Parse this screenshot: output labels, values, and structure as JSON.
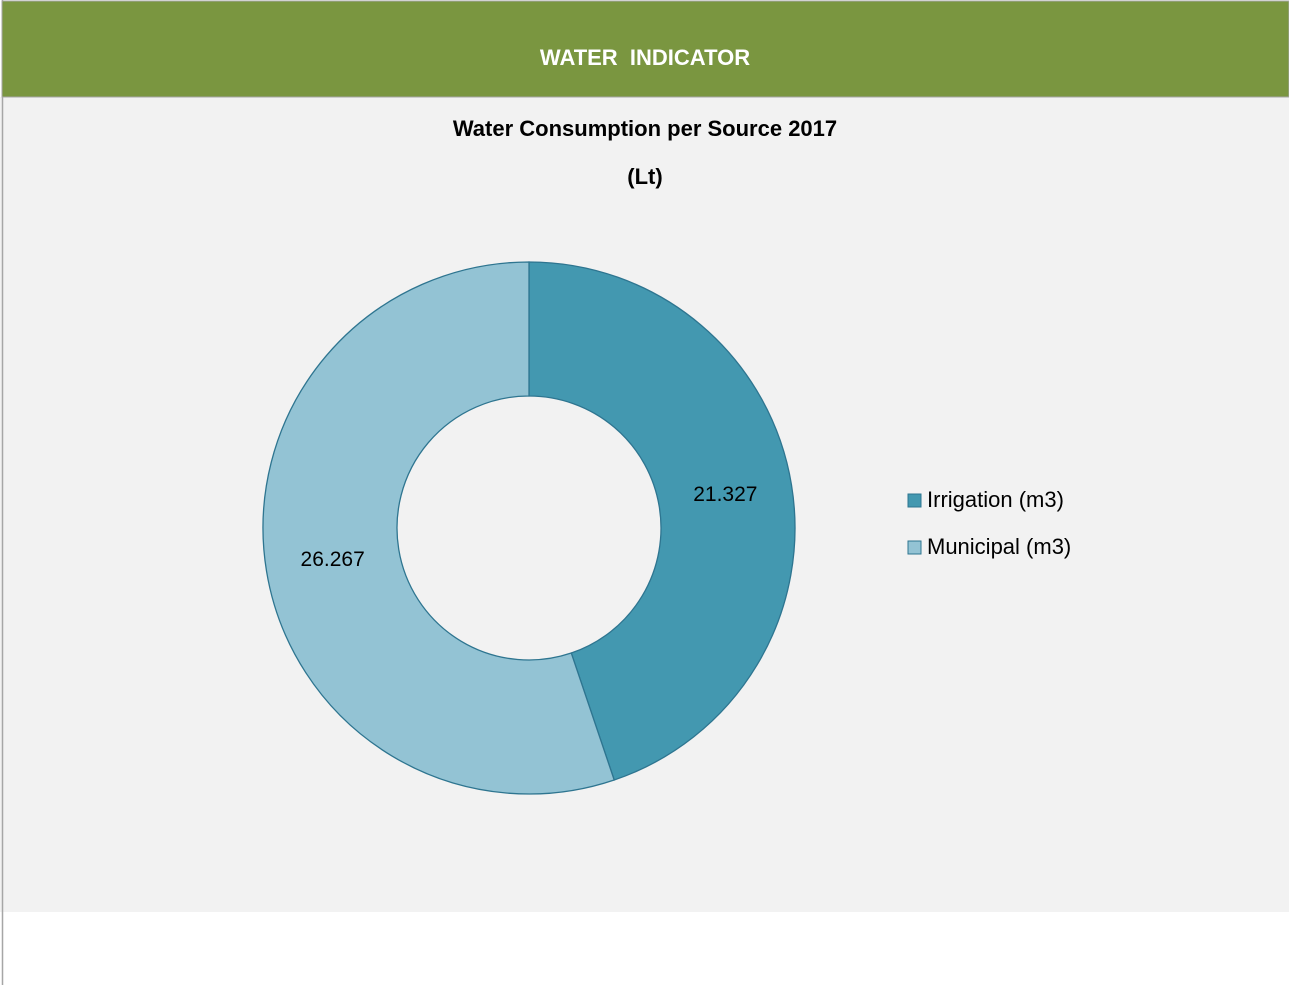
{
  "header": {
    "title": "WATER  INDICATOR"
  },
  "chart_data": {
    "type": "donut",
    "title": "Water Consumption per Source 2017",
    "subtitle": "(Lt)",
    "categories": [
      "Irrigation (m3)",
      "Municipal (m3)"
    ],
    "values": [
      21.327,
      26.267
    ],
    "colors": [
      "#4398b0",
      "#93c3d4"
    ],
    "legend": "right"
  }
}
